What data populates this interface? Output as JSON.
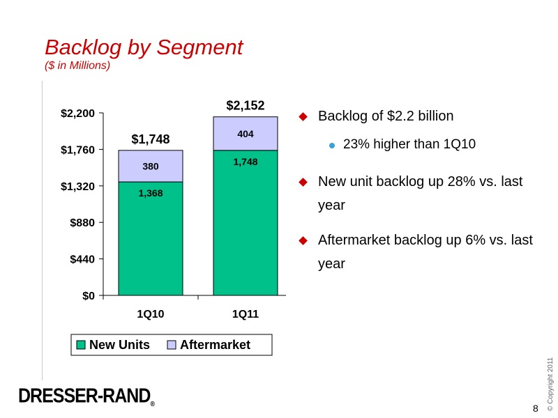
{
  "slide": {
    "title": "Backlog by Segment",
    "subtitle": "($ in Millions)",
    "page_number": "8",
    "copyright": "© Copyright 2011",
    "logo": "DRESSER-RAND",
    "logo_mark": "®"
  },
  "bullets": [
    {
      "text": "Backlog of $2.2 billion",
      "sub": [
        "23% higher than 1Q10"
      ]
    },
    {
      "text": "New unit backlog up 28% vs. last year",
      "sub": []
    },
    {
      "text": "Aftermarket backlog up 6% vs. last year",
      "sub": []
    }
  ],
  "colors": {
    "title": "#cc0000",
    "new_units": "#00c18a",
    "aftermarket": "#ccccff",
    "bullet_marker": "#cc0000",
    "sub_bullet_marker": "#3aa0d8"
  },
  "chart_data": {
    "type": "bar",
    "stacked": true,
    "categories": [
      "1Q10",
      "1Q11"
    ],
    "series": [
      {
        "name": "New Units",
        "values": [
          1368,
          1748
        ],
        "labels": [
          "1,368",
          "1,748"
        ],
        "color": "#00c18a"
      },
      {
        "name": "Aftermarket",
        "values": [
          380,
          404
        ],
        "labels": [
          "380",
          "404"
        ],
        "color": "#ccccff"
      }
    ],
    "totals": [
      1748,
      2152
    ],
    "total_labels": [
      "$1,748",
      "$2,152"
    ],
    "yticks": [
      0,
      440,
      880,
      1320,
      1760,
      2200
    ],
    "ytick_labels": [
      "$0",
      "$440",
      "$880",
      "$1,320",
      "$1,760",
      "$2,200"
    ],
    "ylim": [
      0,
      2200
    ],
    "legend": "bottom"
  }
}
